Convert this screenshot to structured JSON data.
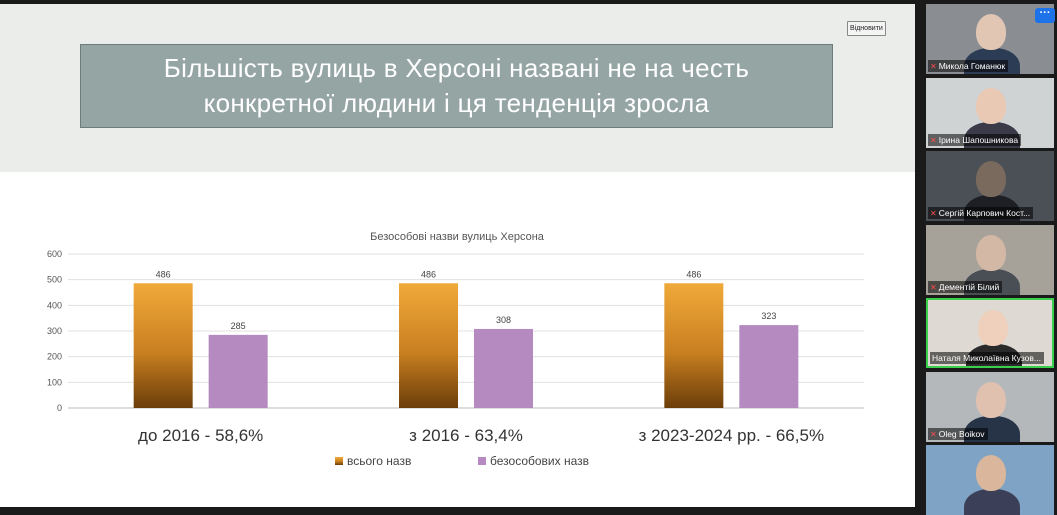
{
  "slide": {
    "title": "Більшість вулиць в Херсоні названі не на честь конкретної людини і ця тенденція зросла",
    "restore_label": "Відновити"
  },
  "colors": {
    "total_bar_top": "#f0a93a",
    "total_bar_bottom": "#6b3d0a",
    "impersonal_bar": "#b48ac0",
    "title_bg": "#95a5a4"
  },
  "chart_data": {
    "type": "bar",
    "title": "Безособові назви вулиць Херсона",
    "categories": [
      "до 2016 - 58,6%",
      "з 2016 - 63,4%",
      "з 2023-2024 рр. - 66,5%"
    ],
    "series": [
      {
        "name": "всього назв",
        "values": [
          486,
          486,
          486
        ]
      },
      {
        "name": "безособових назв",
        "values": [
          285,
          308,
          323
        ]
      }
    ],
    "data_labels": [
      [
        "486",
        "285"
      ],
      [
        "486",
        "308"
      ],
      [
        "486",
        "323"
      ]
    ],
    "yticks": [
      "0",
      "100",
      "200",
      "300",
      "400",
      "500",
      "600"
    ],
    "ylim": [
      0,
      600
    ],
    "grid": true,
    "legend": "bottom-center"
  },
  "participants": [
    {
      "name": "Микола Гоманюк",
      "muted": true
    },
    {
      "name": "Ірина Шапошникова",
      "muted": true
    },
    {
      "name": "Сергій Карпович Кост...",
      "muted": true
    },
    {
      "name": "Дементій Білий",
      "muted": true
    },
    {
      "name": "Наталя Миколаївна Кузов...",
      "muted": false,
      "active": true
    },
    {
      "name": "Oleg Boikov",
      "muted": true
    },
    {
      "name": "",
      "muted": false
    }
  ],
  "more_button_label": "···"
}
